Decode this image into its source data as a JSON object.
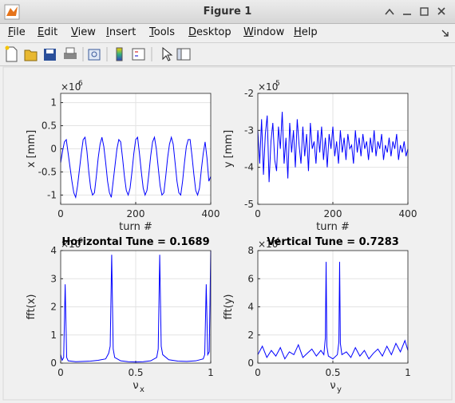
{
  "window": {
    "title": "Figure 1",
    "menu": [
      "File",
      "Edit",
      "View",
      "Insert",
      "Tools",
      "Desktop",
      "Window",
      "Help"
    ]
  },
  "chart_data": [
    {
      "type": "line",
      "xlabel": "turn #",
      "ylabel": "x [mm]",
      "y_multiplier": "×10",
      "y_exponent": "6",
      "xlim": [
        0,
        400
      ],
      "xticks": [
        0,
        200,
        400
      ],
      "ylim": [
        -1.2,
        1.2
      ],
      "yticks": [
        -1,
        -0.5,
        0,
        0.5,
        1
      ],
      "grid": true,
      "series": [
        {
          "color": "#0000ff",
          "x": [
            0,
            5,
            10,
            15,
            20,
            25,
            30,
            35,
            40,
            45,
            50,
            55,
            60,
            65,
            70,
            75,
            80,
            85,
            90,
            95,
            100,
            105,
            110,
            115,
            120,
            125,
            130,
            135,
            140,
            145,
            150,
            155,
            160,
            165,
            170,
            175,
            180,
            185,
            190,
            195,
            200,
            205,
            210,
            215,
            220,
            225,
            230,
            235,
            240,
            245,
            250,
            255,
            260,
            265,
            270,
            275,
            280,
            285,
            290,
            295,
            300,
            305,
            310,
            315,
            320,
            325,
            330,
            335,
            340,
            345,
            350,
            355,
            360,
            365,
            370,
            375,
            380,
            385,
            390,
            395,
            400
          ],
          "values": [
            -0.3,
            -0.05,
            0.15,
            0.2,
            -0.1,
            -0.4,
            -0.7,
            -0.95,
            -1.05,
            -0.8,
            -0.45,
            -0.1,
            0.2,
            0.25,
            -0.05,
            -0.5,
            -0.85,
            -1.0,
            -0.95,
            -0.6,
            -0.2,
            0.1,
            0.25,
            0.05,
            -0.3,
            -0.7,
            -0.95,
            -1.05,
            -0.7,
            -0.35,
            0.0,
            0.2,
            0.15,
            -0.2,
            -0.6,
            -0.9,
            -1.0,
            -0.85,
            -0.5,
            -0.1,
            0.2,
            0.25,
            -0.1,
            -0.5,
            -0.85,
            -1.0,
            -0.9,
            -0.55,
            -0.15,
            0.15,
            0.25,
            0.0,
            -0.4,
            -0.8,
            -1.0,
            -0.95,
            -0.6,
            -0.2,
            0.1,
            0.25,
            0.1,
            -0.3,
            -0.7,
            -0.95,
            -1.0,
            -0.7,
            -0.3,
            0.05,
            0.2,
            0.2,
            -0.15,
            -0.55,
            -0.9,
            -1.0,
            -0.85,
            -0.45,
            -0.1,
            0.15,
            -0.2,
            -0.7,
            -0.6
          ]
        }
      ]
    },
    {
      "type": "line",
      "xlabel": "turn #",
      "ylabel": "y [mm]",
      "y_multiplier": "×10",
      "y_exponent": "5",
      "xlim": [
        0,
        400
      ],
      "xticks": [
        0,
        200,
        400
      ],
      "ylim": [
        -5,
        -2
      ],
      "yticks": [
        -5,
        -4,
        -3,
        -2
      ],
      "grid": true,
      "series": [
        {
          "color": "#0000ff",
          "x": [
            0,
            5,
            10,
            15,
            20,
            25,
            30,
            35,
            40,
            45,
            50,
            55,
            60,
            65,
            70,
            75,
            80,
            85,
            90,
            95,
            100,
            105,
            110,
            115,
            120,
            125,
            130,
            135,
            140,
            145,
            150,
            155,
            160,
            165,
            170,
            175,
            180,
            185,
            190,
            195,
            200,
            205,
            210,
            215,
            220,
            225,
            230,
            235,
            240,
            245,
            250,
            255,
            260,
            265,
            270,
            275,
            280,
            285,
            290,
            295,
            300,
            305,
            310,
            315,
            320,
            325,
            330,
            335,
            340,
            345,
            350,
            355,
            360,
            365,
            370,
            375,
            380,
            385,
            390,
            395,
            400
          ],
          "values": [
            -3.0,
            -3.9,
            -2.7,
            -4.2,
            -3.1,
            -2.6,
            -4.4,
            -3.3,
            -2.8,
            -3.8,
            -4.1,
            -2.9,
            -3.5,
            -2.5,
            -3.9,
            -3.2,
            -4.3,
            -2.8,
            -3.6,
            -3.0,
            -4.0,
            -2.7,
            -3.4,
            -3.9,
            -2.9,
            -3.7,
            -3.1,
            -4.1,
            -2.8,
            -3.5,
            -3.3,
            -3.9,
            -3.0,
            -3.6,
            -2.9,
            -3.8,
            -3.2,
            -4.0,
            -3.1,
            -3.5,
            -2.9,
            -3.7,
            -3.3,
            -3.9,
            -3.0,
            -3.6,
            -3.2,
            -3.8,
            -3.1,
            -3.5,
            -3.4,
            -3.9,
            -3.0,
            -3.6,
            -3.2,
            -3.7,
            -3.1,
            -3.5,
            -3.3,
            -3.8,
            -3.2,
            -3.6,
            -3.0,
            -3.7,
            -3.3,
            -3.5,
            -3.1,
            -3.8,
            -3.4,
            -3.6,
            -3.2,
            -3.7,
            -3.3,
            -3.5,
            -3.1,
            -3.8,
            -3.4,
            -3.6,
            -3.3,
            -3.7,
            -3.5
          ]
        }
      ]
    },
    {
      "type": "line",
      "title": "Horizontal Tune = 0.1689",
      "xlabel": "ν",
      "xlabel_sub": "x",
      "ylabel": "fft(x)",
      "y_multiplier": "×10",
      "y_exponent": "6",
      "xlim": [
        0,
        1
      ],
      "xticks": [
        0,
        0.5,
        1
      ],
      "ylim": [
        0,
        4
      ],
      "yticks": [
        0,
        1,
        2,
        3,
        4
      ],
      "grid": true,
      "series": [
        {
          "color": "#0000ff",
          "x": [
            0,
            0.01,
            0.02,
            0.03,
            0.04,
            0.05,
            0.1,
            0.15,
            0.2,
            0.25,
            0.3,
            0.32,
            0.33,
            0.34,
            0.35,
            0.36,
            0.4,
            0.45,
            0.5,
            0.55,
            0.6,
            0.64,
            0.65,
            0.66,
            0.67,
            0.68,
            0.72,
            0.78,
            0.84,
            0.9,
            0.95,
            0.96,
            0.97,
            0.98,
            0.99,
            1
          ],
          "values": [
            0.3,
            0.1,
            0.2,
            2.8,
            0.2,
            0.08,
            0.05,
            0.06,
            0.07,
            0.1,
            0.15,
            0.35,
            0.6,
            3.85,
            0.5,
            0.2,
            0.08,
            0.05,
            0.04,
            0.05,
            0.08,
            0.2,
            0.5,
            3.85,
            0.6,
            0.3,
            0.12,
            0.07,
            0.06,
            0.08,
            0.15,
            0.3,
            2.8,
            0.3,
            0.4,
            4
          ]
        }
      ]
    },
    {
      "type": "line",
      "title": "Vertical Tune = 0.7283",
      "xlabel": "ν",
      "xlabel_sub": "y",
      "ylabel": "fft(y)",
      "y_multiplier": "×10",
      "y_exponent": "4",
      "xlim": [
        0,
        1
      ],
      "xticks": [
        0,
        0.5,
        1
      ],
      "ylim": [
        0,
        8
      ],
      "yticks": [
        0,
        2,
        4,
        6,
        8
      ],
      "grid": true,
      "series": [
        {
          "color": "#0000ff",
          "x": [
            0,
            0.03,
            0.06,
            0.09,
            0.12,
            0.15,
            0.18,
            0.21,
            0.24,
            0.27,
            0.3,
            0.33,
            0.36,
            0.39,
            0.42,
            0.44,
            0.45,
            0.455,
            0.46,
            0.47,
            0.5,
            0.53,
            0.54,
            0.545,
            0.55,
            0.56,
            0.59,
            0.62,
            0.65,
            0.68,
            0.71,
            0.74,
            0.77,
            0.8,
            0.83,
            0.86,
            0.89,
            0.92,
            0.95,
            0.98,
            1.0
          ],
          "values": [
            0.6,
            1.2,
            0.4,
            0.9,
            0.5,
            1.1,
            0.3,
            0.8,
            0.6,
            1.3,
            0.4,
            0.7,
            1.0,
            0.5,
            0.9,
            0.6,
            1.8,
            7.2,
            1.2,
            0.5,
            0.3,
            0.6,
            1.5,
            7.2,
            1.4,
            0.6,
            0.8,
            0.4,
            1.1,
            0.5,
            0.9,
            0.3,
            0.7,
            1.0,
            0.5,
            1.2,
            0.6,
            1.4,
            0.8,
            1.6,
            0.9
          ]
        }
      ]
    }
  ]
}
